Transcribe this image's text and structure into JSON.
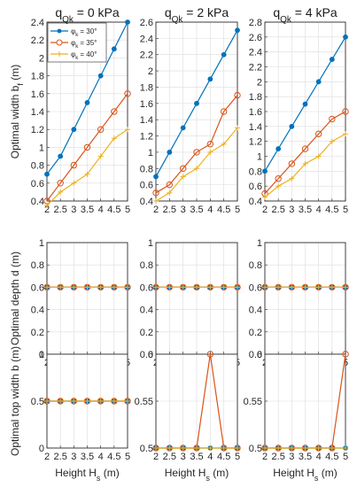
{
  "figure": {
    "column_titles": [
      {
        "main": "q",
        "sub": "Qk",
        "rest": " = 0 kPa"
      },
      {
        "main": "q",
        "sub": "Qk",
        "rest": " = 2 kPa"
      },
      {
        "main": "q",
        "sub": "Qk",
        "rest": " = 4 kPa"
      }
    ],
    "row_ylabels": [
      {
        "main": "Optimal width b",
        "sub": "f",
        "rest": " (m)"
      },
      {
        "main": "Optimal depth d (m)",
        "sub": "",
        "rest": ""
      },
      {
        "main": "Optimal top width b (m)",
        "sub": "",
        "rest": ""
      }
    ],
    "xlabel": {
      "main": "Height H",
      "sub": "s",
      "rest": " (m)"
    },
    "legend": [
      {
        "symbol": "φ",
        "sub": "k",
        "rest": " = 30°"
      },
      {
        "symbol": "φ",
        "sub": "k",
        "rest": " = 35°"
      },
      {
        "symbol": "φ",
        "sub": "k",
        "rest": " = 40°"
      }
    ],
    "colors": [
      "#0072BD",
      "#D95319",
      "#EDB120"
    ],
    "markers": [
      "filled-circle",
      "open-circle",
      "plus"
    ]
  },
  "chart_data": [
    {
      "type": "line",
      "row": 0,
      "col": 0,
      "title": "q_Qk = 0 kPa",
      "ylabel": "Optimal width b_f (m)",
      "xlabel": "",
      "x": [
        2,
        2.5,
        3,
        3.5,
        4,
        4.5,
        5
      ],
      "xlim": [
        2,
        5
      ],
      "ylim": [
        0.4,
        2.4
      ],
      "yticks": [
        0.4,
        0.6,
        0.8,
        1,
        1.2,
        1.4,
        1.6,
        1.8,
        2,
        2.2,
        2.4
      ],
      "legend_position": "top-left",
      "series": [
        {
          "name": "φk = 30°",
          "values": [
            0.7,
            0.9,
            1.2,
            1.5,
            1.8,
            2.1,
            2.4
          ]
        },
        {
          "name": "φk = 35°",
          "values": [
            0.4,
            0.6,
            0.8,
            1.0,
            1.2,
            1.4,
            1.6
          ]
        },
        {
          "name": "φk = 40°",
          "values": [
            0.35,
            0.5,
            0.6,
            0.7,
            0.9,
            1.1,
            1.2
          ]
        }
      ]
    },
    {
      "type": "line",
      "row": 0,
      "col": 1,
      "title": "q_Qk = 2 kPa",
      "ylabel": "",
      "xlabel": "",
      "x": [
        2,
        2.5,
        3,
        3.5,
        4,
        4.5,
        5
      ],
      "xlim": [
        2,
        5
      ],
      "ylim": [
        0.4,
        2.6
      ],
      "yticks": [
        0.4,
        0.6,
        0.8,
        1,
        1.2,
        1.4,
        1.6,
        1.8,
        2,
        2.2,
        2.4,
        2.6
      ],
      "series": [
        {
          "name": "φk = 30°",
          "values": [
            0.7,
            1.0,
            1.3,
            1.6,
            1.9,
            2.2,
            2.5
          ]
        },
        {
          "name": "φk = 35°",
          "values": [
            0.5,
            0.6,
            0.8,
            1.0,
            1.1,
            1.5,
            1.7
          ]
        },
        {
          "name": "φk = 40°",
          "values": [
            0.4,
            0.5,
            0.7,
            0.8,
            1.0,
            1.1,
            1.3
          ]
        }
      ]
    },
    {
      "type": "line",
      "row": 0,
      "col": 2,
      "title": "q_Qk = 4 kPa",
      "ylabel": "",
      "xlabel": "",
      "x": [
        2,
        2.5,
        3,
        3.5,
        4,
        4.5,
        5
      ],
      "xlim": [
        2,
        5
      ],
      "ylim": [
        0.4,
        2.8
      ],
      "yticks": [
        0.4,
        0.6,
        0.8,
        1,
        1.2,
        1.4,
        1.6,
        1.8,
        2,
        2.2,
        2.4,
        2.6,
        2.8
      ],
      "series": [
        {
          "name": "φk = 30°",
          "values": [
            0.8,
            1.1,
            1.4,
            1.7,
            2.0,
            2.3,
            2.6
          ]
        },
        {
          "name": "φk = 35°",
          "values": [
            0.5,
            0.7,
            0.9,
            1.1,
            1.3,
            1.5,
            1.6
          ]
        },
        {
          "name": "φk = 40°",
          "values": [
            0.45,
            0.6,
            0.7,
            0.9,
            1.0,
            1.2,
            1.3
          ]
        }
      ]
    },
    {
      "type": "line",
      "row": 1,
      "col": 0,
      "title": "",
      "ylabel": "Optimal depth d (m)",
      "xlabel": "",
      "x": [
        2,
        2.5,
        3,
        3.5,
        4,
        4.5,
        5
      ],
      "xlim": [
        2,
        5
      ],
      "ylim": [
        0,
        1
      ],
      "yticks": [
        0,
        0.2,
        0.4,
        0.6,
        0.8,
        1
      ],
      "series": [
        {
          "name": "φk = 30°",
          "values": [
            0.6,
            0.6,
            0.6,
            0.6,
            0.6,
            0.6,
            0.6
          ]
        },
        {
          "name": "φk = 35°",
          "values": [
            0.6,
            0.6,
            0.6,
            0.6,
            0.6,
            0.6,
            0.6
          ]
        },
        {
          "name": "φk = 40°",
          "values": [
            0.6,
            0.6,
            0.6,
            0.6,
            0.6,
            0.6,
            0.6
          ]
        }
      ]
    },
    {
      "type": "line",
      "row": 1,
      "col": 1,
      "title": "",
      "ylabel": "",
      "xlabel": "",
      "x": [
        2,
        2.5,
        3,
        3.5,
        4,
        4.5,
        5
      ],
      "xlim": [
        2,
        5
      ],
      "ylim": [
        0,
        1
      ],
      "yticks": [
        0,
        0.2,
        0.4,
        0.6,
        0.8,
        1
      ],
      "series": [
        {
          "name": "φk = 30°",
          "values": [
            0.6,
            0.6,
            0.6,
            0.6,
            0.6,
            0.6,
            0.6
          ]
        },
        {
          "name": "φk = 35°",
          "values": [
            0.6,
            0.6,
            0.6,
            0.6,
            0.6,
            0.6,
            0.6
          ]
        },
        {
          "name": "φk = 40°",
          "values": [
            0.6,
            0.6,
            0.6,
            0.6,
            0.6,
            0.6,
            0.6
          ]
        }
      ]
    },
    {
      "type": "line",
      "row": 1,
      "col": 2,
      "title": "",
      "ylabel": "",
      "xlabel": "",
      "x": [
        2,
        2.5,
        3,
        3.5,
        4,
        4.5,
        5
      ],
      "xlim": [
        2,
        5
      ],
      "ylim": [
        0,
        1
      ],
      "yticks": [
        0,
        0.2,
        0.4,
        0.6,
        0.8,
        1
      ],
      "series": [
        {
          "name": "φk = 30°",
          "values": [
            0.6,
            0.6,
            0.6,
            0.6,
            0.6,
            0.6,
            0.6
          ]
        },
        {
          "name": "φk = 35°",
          "values": [
            0.6,
            0.6,
            0.6,
            0.6,
            0.6,
            0.6,
            0.6
          ]
        },
        {
          "name": "φk = 40°",
          "values": [
            0.6,
            0.6,
            0.6,
            0.6,
            0.6,
            0.6,
            0.6
          ]
        }
      ]
    },
    {
      "type": "line",
      "row": 2,
      "col": 0,
      "title": "",
      "ylabel": "Optimal top width b (m)",
      "xlabel": "Height H_s (m)",
      "x": [
        2,
        2.5,
        3,
        3.5,
        4,
        4.5,
        5
      ],
      "xlim": [
        2,
        5
      ],
      "ylim": [
        0,
        1
      ],
      "yticks": [
        0,
        0.5,
        1
      ],
      "series": [
        {
          "name": "φk = 30°",
          "values": [
            0.5,
            0.5,
            0.5,
            0.5,
            0.5,
            0.5,
            0.5
          ]
        },
        {
          "name": "φk = 35°",
          "values": [
            0.5,
            0.5,
            0.5,
            0.5,
            0.5,
            0.5,
            0.5
          ]
        },
        {
          "name": "φk = 40°",
          "values": [
            0.5,
            0.5,
            0.5,
            0.5,
            0.5,
            0.5,
            0.5
          ]
        }
      ]
    },
    {
      "type": "line",
      "row": 2,
      "col": 1,
      "title": "",
      "ylabel": "",
      "xlabel": "Height H_s (m)",
      "x": [
        2,
        2.5,
        3,
        3.5,
        4,
        4.5,
        5
      ],
      "xlim": [
        2,
        5
      ],
      "ylim": [
        0.5,
        0.6
      ],
      "yticks": [
        0.5,
        0.55,
        0.6
      ],
      "series": [
        {
          "name": "φk = 30°",
          "values": [
            0.5,
            0.5,
            0.5,
            0.5,
            0.5,
            0.5,
            0.5
          ]
        },
        {
          "name": "φk = 35°",
          "values": [
            0.5,
            0.5,
            0.5,
            0.5,
            0.6,
            0.5,
            0.5
          ]
        },
        {
          "name": "φk = 40°",
          "values": [
            0.5,
            0.5,
            0.5,
            0.5,
            0.5,
            0.5,
            0.5
          ]
        }
      ]
    },
    {
      "type": "line",
      "row": 2,
      "col": 2,
      "title": "",
      "ylabel": "",
      "xlabel": "Height H_s (m)",
      "x": [
        2,
        2.5,
        3,
        3.5,
        4,
        4.5,
        5
      ],
      "xlim": [
        2,
        5
      ],
      "ylim": [
        0.5,
        0.6
      ],
      "yticks": [
        0.5,
        0.55,
        0.6
      ],
      "series": [
        {
          "name": "φk = 30°",
          "values": [
            0.5,
            0.5,
            0.5,
            0.5,
            0.5,
            0.5,
            0.5
          ]
        },
        {
          "name": "φk = 35°",
          "values": [
            0.5,
            0.5,
            0.5,
            0.5,
            0.5,
            0.5,
            0.6
          ]
        },
        {
          "name": "φk = 40°",
          "values": [
            0.5,
            0.5,
            0.5,
            0.5,
            0.5,
            0.5,
            0.5
          ]
        }
      ]
    }
  ]
}
